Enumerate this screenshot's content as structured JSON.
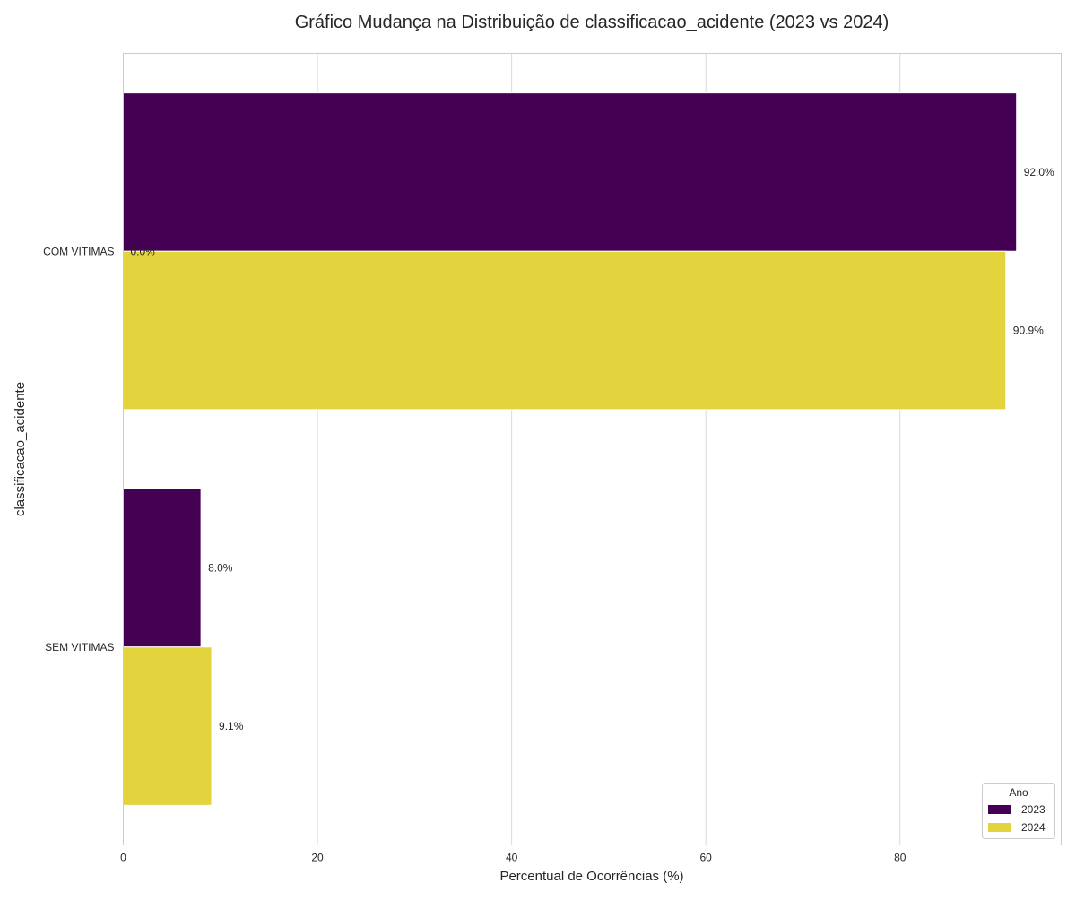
{
  "chart_data": {
    "type": "bar",
    "orientation": "horizontal",
    "title": "Gráfico Mudança na Distribuição de classificacao_acidente (2023 vs 2024)",
    "xlabel": "Percentual de Ocorrências (%)",
    "ylabel": "classificacao_acidente",
    "categories": [
      "COM VITIMAS",
      "SEM VITIMAS"
    ],
    "xlim": [
      0,
      96.6
    ],
    "x_ticks": [
      "0",
      "20",
      "40",
      "60",
      "80"
    ],
    "x_tick_values": [
      0,
      20,
      40,
      60,
      80
    ],
    "grid": true,
    "series": [
      {
        "name": "2023",
        "color": "#440154",
        "values": [
          92.0,
          8.0
        ],
        "labels": [
          "92.0%",
          "8.0%"
        ]
      },
      {
        "name": "2024",
        "color": "#e3d43e",
        "values": [
          90.9,
          9.1
        ],
        "labels": [
          "90.9%",
          "9.1%"
        ]
      }
    ],
    "annotations": [
      {
        "text": "0.0%",
        "category": "COM VITIMAS",
        "value": 0
      }
    ],
    "legend": {
      "title": "Ano",
      "position": "bottom-right"
    }
  }
}
